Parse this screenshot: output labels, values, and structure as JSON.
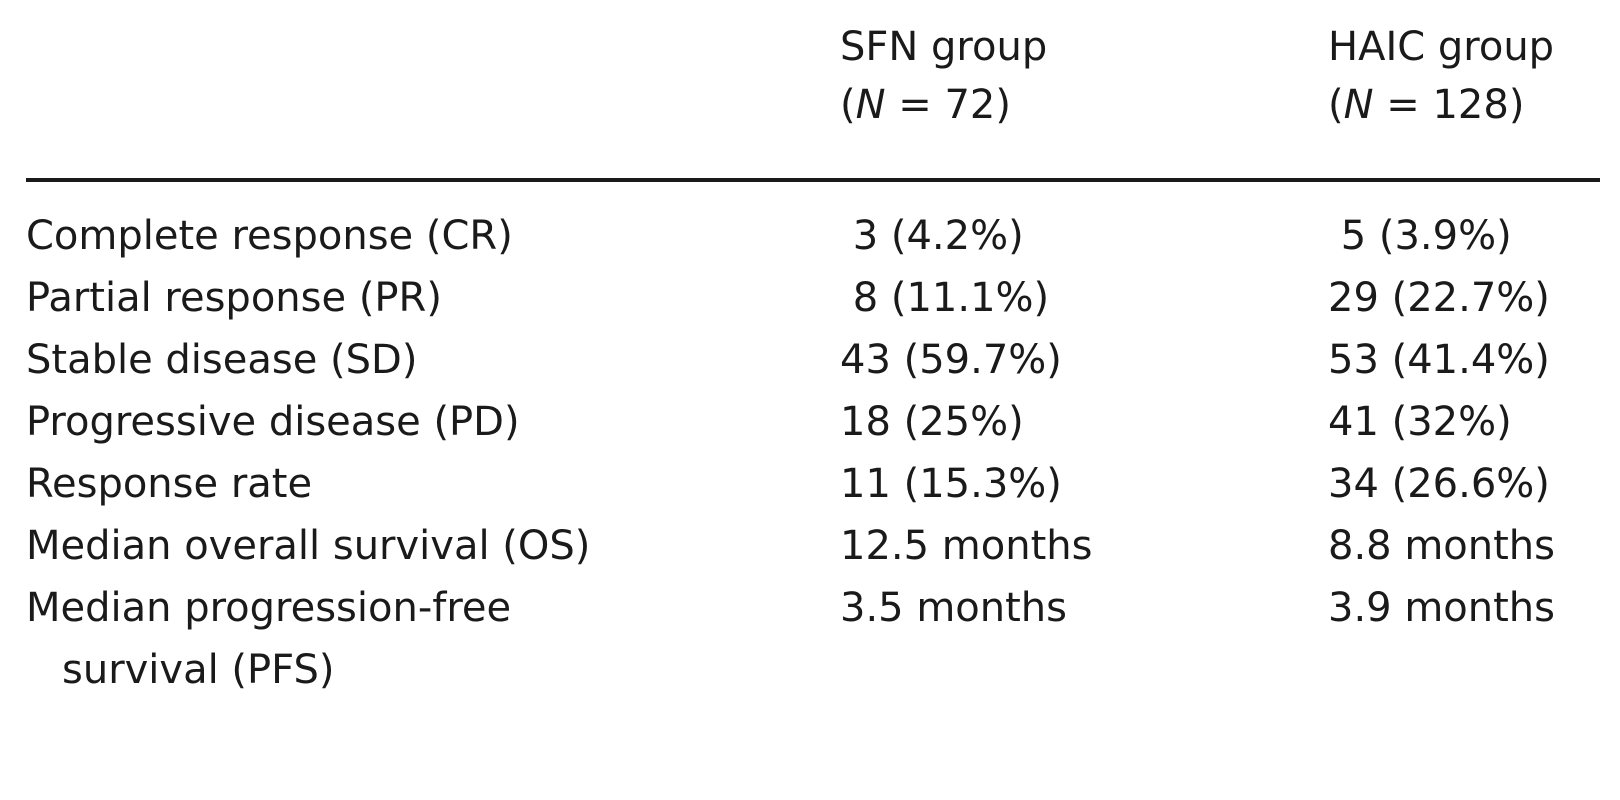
{
  "table": {
    "columns": [
      {
        "group": "SFN group",
        "n_prefix": "(",
        "n_symbol": "N",
        "n_text": " = 72)"
      },
      {
        "group": "HAIC group",
        "n_prefix": "(",
        "n_symbol": "N",
        "n_text": " = 128)"
      }
    ],
    "rows": [
      {
        "label": "Complete response (CR)",
        "sfn": " 3 (4.2%)",
        "haic": " 5 (3.9%)"
      },
      {
        "label": "Partial response (PR)",
        "sfn": " 8 (11.1%)",
        "haic": "29 (22.7%)"
      },
      {
        "label": "Stable disease (SD)",
        "sfn": "43 (59.7%)",
        "haic": "53 (41.4%)"
      },
      {
        "label": "Progressive disease (PD)",
        "sfn": "18 (25%)",
        "haic": "41 (32%)"
      },
      {
        "label": "Response rate",
        "sfn": "11 (15.3%)",
        "haic": "34 (26.6%)"
      },
      {
        "label": "Median overall survival (OS)",
        "sfn": "12.5 months",
        "haic": "8.8 months"
      },
      {
        "label": "Median progression-free",
        "label_cont": "survival (PFS)",
        "sfn": "3.5 months",
        "haic": "3.9 months"
      }
    ]
  }
}
